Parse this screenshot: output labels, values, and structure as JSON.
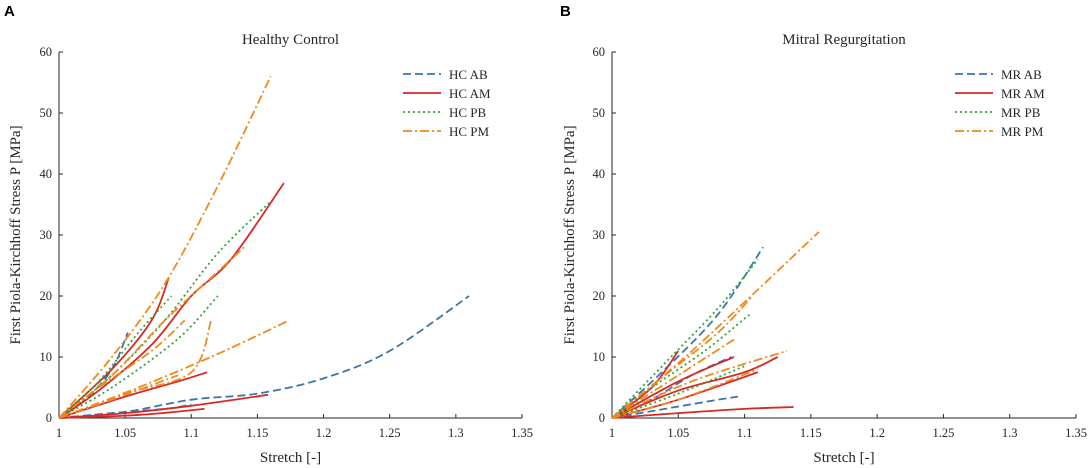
{
  "chart_data": [
    {
      "type": "line",
      "panel": "A",
      "title": "Healthy Control",
      "xlabel": "Stretch [-]",
      "ylabel": "First Piola-Kirchhoff Stress P [MPa]",
      "xlim": [
        1,
        1.35
      ],
      "ylim": [
        0,
        60
      ],
      "xticks": [
        1,
        1.05,
        1.1,
        1.15,
        1.2,
        1.25,
        1.3,
        1.35
      ],
      "xtick_labels": [
        "1",
        "1.05",
        "1.1",
        "1.15",
        "1.2",
        "1.25",
        "1.3",
        "1.35"
      ],
      "yticks": [
        0,
        10,
        20,
        30,
        40,
        50,
        60
      ],
      "ytick_labels": [
        "0",
        "10",
        "20",
        "30",
        "40",
        "50",
        "60"
      ],
      "legend_position": "top-right",
      "series": [
        {
          "name": "HC AB",
          "legend": "HC AB",
          "color": "#3b75af",
          "style": "dashed",
          "curves": [
            [
              [
                1,
                0
              ],
              [
                1.02,
                3
              ],
              [
                1.04,
                8
              ],
              [
                1.052,
                14
              ]
            ],
            [
              [
                1,
                0
              ],
              [
                1.05,
                1
              ],
              [
                1.1,
                3
              ],
              [
                1.15,
                4
              ],
              [
                1.2,
                6.5
              ],
              [
                1.25,
                11
              ],
              [
                1.31,
                20
              ]
            ],
            [
              [
                1,
                0
              ],
              [
                1.04,
                0.8
              ],
              [
                1.08,
                1.5
              ],
              [
                1.1,
                2.2
              ]
            ]
          ]
        },
        {
          "name": "HC AM",
          "legend": "HC AM",
          "color": "#d62a28",
          "style": "solid",
          "curves": [
            [
              [
                1,
                0
              ],
              [
                1.04,
                8
              ],
              [
                1.07,
                16
              ],
              [
                1.083,
                23
              ]
            ],
            [
              [
                1,
                0
              ],
              [
                1.03,
                4.5
              ],
              [
                1.07,
                12
              ],
              [
                1.1,
                20
              ],
              [
                1.13,
                26
              ],
              [
                1.17,
                38.5
              ]
            ],
            [
              [
                1,
                0
              ],
              [
                1.05,
                3.5
              ],
              [
                1.09,
                6
              ],
              [
                1.112,
                7.5
              ]
            ],
            [
              [
                1,
                0
              ],
              [
                1.05,
                0.8
              ],
              [
                1.1,
                2
              ],
              [
                1.158,
                3.8
              ]
            ],
            [
              [
                1,
                0
              ],
              [
                1.06,
                0.5
              ],
              [
                1.11,
                1.5
              ]
            ]
          ]
        },
        {
          "name": "HC PB",
          "legend": "HC PB",
          "color": "#36a336",
          "style": "dotted",
          "curves": [
            [
              [
                1,
                0
              ],
              [
                1.03,
                6
              ],
              [
                1.06,
                14
              ],
              [
                1.085,
                20
              ]
            ],
            [
              [
                1,
                0
              ],
              [
                1.04,
                7
              ],
              [
                1.08,
                16
              ],
              [
                1.12,
                27
              ],
              [
                1.16,
                35.5
              ]
            ],
            [
              [
                1,
                0
              ],
              [
                1.04,
                5
              ],
              [
                1.09,
                13
              ],
              [
                1.12,
                20
              ]
            ]
          ]
        },
        {
          "name": "HC PM",
          "legend": "HC PM",
          "color": "#ef8a1c",
          "style": "dashdot",
          "curves": [
            [
              [
                1,
                0
              ],
              [
                1.04,
                10
              ],
              [
                1.08,
                22
              ],
              [
                1.12,
                38
              ],
              [
                1.16,
                56
              ]
            ],
            [
              [
                1,
                0
              ],
              [
                1.04,
                7
              ],
              [
                1.08,
                16
              ],
              [
                1.11,
                22
              ],
              [
                1.14,
                28
              ]
            ],
            [
              [
                1,
                0
              ],
              [
                1.03,
                5
              ],
              [
                1.07,
                11
              ],
              [
                1.095,
                16
              ]
            ],
            [
              [
                1,
                0
              ],
              [
                1.06,
                5
              ],
              [
                1.12,
                10.5
              ],
              [
                1.174,
                16
              ]
            ],
            [
              [
                1,
                0
              ],
              [
                1.05,
                4
              ],
              [
                1.1,
                7.5
              ],
              [
                1.115,
                16
              ]
            ],
            [
              [
                1,
                0
              ],
              [
                1.04,
                3
              ],
              [
                1.09,
                7
              ]
            ]
          ]
        }
      ]
    },
    {
      "type": "line",
      "panel": "B",
      "title": "Mitral Regurgitation",
      "xlabel": "Stretch [-]",
      "ylabel": "First Piola-Kirchhoff Stress P [MPa]",
      "xlim": [
        1,
        1.35
      ],
      "ylim": [
        0,
        60
      ],
      "xticks": [
        1,
        1.05,
        1.1,
        1.15,
        1.2,
        1.25,
        1.3,
        1.35
      ],
      "xtick_labels": [
        "1",
        "1.05",
        "1.1",
        "1.15",
        "1.2",
        "1.25",
        "1.3",
        "1.35"
      ],
      "yticks": [
        0,
        10,
        20,
        30,
        40,
        50,
        60
      ],
      "ytick_labels": [
        "0",
        "10",
        "20",
        "30",
        "40",
        "50",
        "60"
      ],
      "legend_position": "top-right",
      "series": [
        {
          "name": "MR AB",
          "legend": "MR AB",
          "color": "#3b75af",
          "style": "dashed",
          "curves": [
            [
              [
                1,
                0
              ],
              [
                1.04,
                8
              ],
              [
                1.08,
                17
              ],
              [
                1.114,
                28
              ]
            ],
            [
              [
                1,
                0
              ],
              [
                1.03,
                3
              ],
              [
                1.06,
                7
              ],
              [
                1.09,
                10
              ]
            ],
            [
              [
                1,
                0
              ],
              [
                1.04,
                1.5
              ],
              [
                1.08,
                3
              ],
              [
                1.095,
                3.5
              ]
            ]
          ]
        },
        {
          "name": "MR AM",
          "legend": "MR AM",
          "color": "#d62a28",
          "style": "solid",
          "curves": [
            [
              [
                1,
                0
              ],
              [
                1.03,
                5
              ],
              [
                1.05,
                11
              ]
            ],
            [
              [
                1,
                0
              ],
              [
                1.05,
                6
              ],
              [
                1.092,
                10
              ]
            ],
            [
              [
                1,
                0
              ],
              [
                1.05,
                4.5
              ],
              [
                1.1,
                7.5
              ],
              [
                1.125,
                10
              ]
            ],
            [
              [
                1,
                0
              ],
              [
                1.05,
                0.8
              ],
              [
                1.1,
                1.5
              ],
              [
                1.137,
                1.8
              ]
            ],
            [
              [
                1,
                0
              ],
              [
                1.05,
                3
              ],
              [
                1.11,
                7.5
              ]
            ]
          ]
        },
        {
          "name": "MR PB",
          "legend": "MR PB",
          "color": "#36a336",
          "style": "dotted",
          "curves": [
            [
              [
                1,
                0
              ],
              [
                1.04,
                9
              ],
              [
                1.08,
                18
              ],
              [
                1.11,
                26
              ]
            ],
            [
              [
                1,
                0
              ],
              [
                1.03,
                5
              ],
              [
                1.07,
                11
              ],
              [
                1.104,
                17
              ]
            ],
            [
              [
                1,
                0
              ],
              [
                1.05,
                4
              ],
              [
                1.1,
                8.5
              ]
            ]
          ]
        },
        {
          "name": "MR PM",
          "legend": "MR PM",
          "color": "#ef8a1c",
          "style": "dashdot",
          "curves": [
            [
              [
                1,
                0
              ],
              [
                1.05,
                9
              ],
              [
                1.1,
                19
              ],
              [
                1.156,
                30.5
              ]
            ],
            [
              [
                1,
                0
              ],
              [
                1.04,
                7
              ],
              [
                1.08,
                14
              ],
              [
                1.106,
                20
              ]
            ],
            [
              [
                1,
                0
              ],
              [
                1.05,
                7
              ],
              [
                1.093,
                13
              ]
            ],
            [
              [
                1,
                0
              ],
              [
                1.06,
                6
              ],
              [
                1.132,
                11
              ]
            ],
            [
              [
                1,
                0
              ],
              [
                1.05,
                3
              ],
              [
                1.11,
                8
              ]
            ]
          ]
        }
      ]
    }
  ]
}
